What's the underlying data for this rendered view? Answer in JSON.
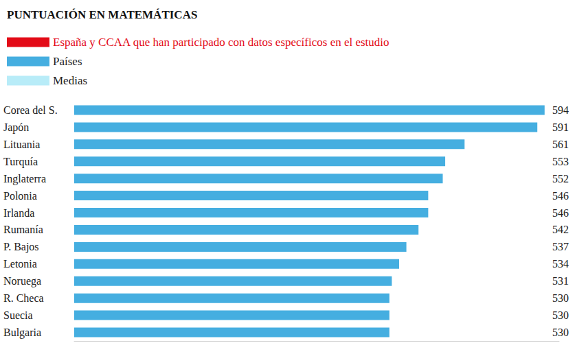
{
  "chart_data": {
    "type": "bar",
    "orientation": "horizontal",
    "title": "PUNTUACIÓN EN MATEMÁTICAS",
    "categories": [
      "Corea del S.",
      "Japón",
      "Lituania",
      "Turquía",
      "Inglaterra",
      "Polonia",
      "Irlanda",
      "Rumanía",
      "P. Bajos",
      "Letonia",
      "Noruega",
      "R. Checa",
      "Suecia",
      "Bulgaria"
    ],
    "series": [
      {
        "name": "España y CCAA que han participado con datos específicos en el estudio",
        "color": "#e30b17",
        "values": [
          null,
          null,
          null,
          null,
          null,
          null,
          null,
          null,
          null,
          null,
          null,
          null,
          null,
          null
        ]
      },
      {
        "name": "Países",
        "color": "#45aee0",
        "values": [
          594,
          591,
          561,
          553,
          552,
          546,
          546,
          542,
          537,
          534,
          531,
          530,
          530,
          530
        ]
      },
      {
        "name": "Medias",
        "color": "#b8ecf8",
        "values": [
          null,
          null,
          null,
          null,
          null,
          null,
          null,
          null,
          null,
          null,
          null,
          null,
          null,
          null
        ]
      }
    ],
    "xlim": [
      400,
      600
    ],
    "tick_labels": false,
    "grid": false,
    "legend": "top-left",
    "data_labels": true
  }
}
